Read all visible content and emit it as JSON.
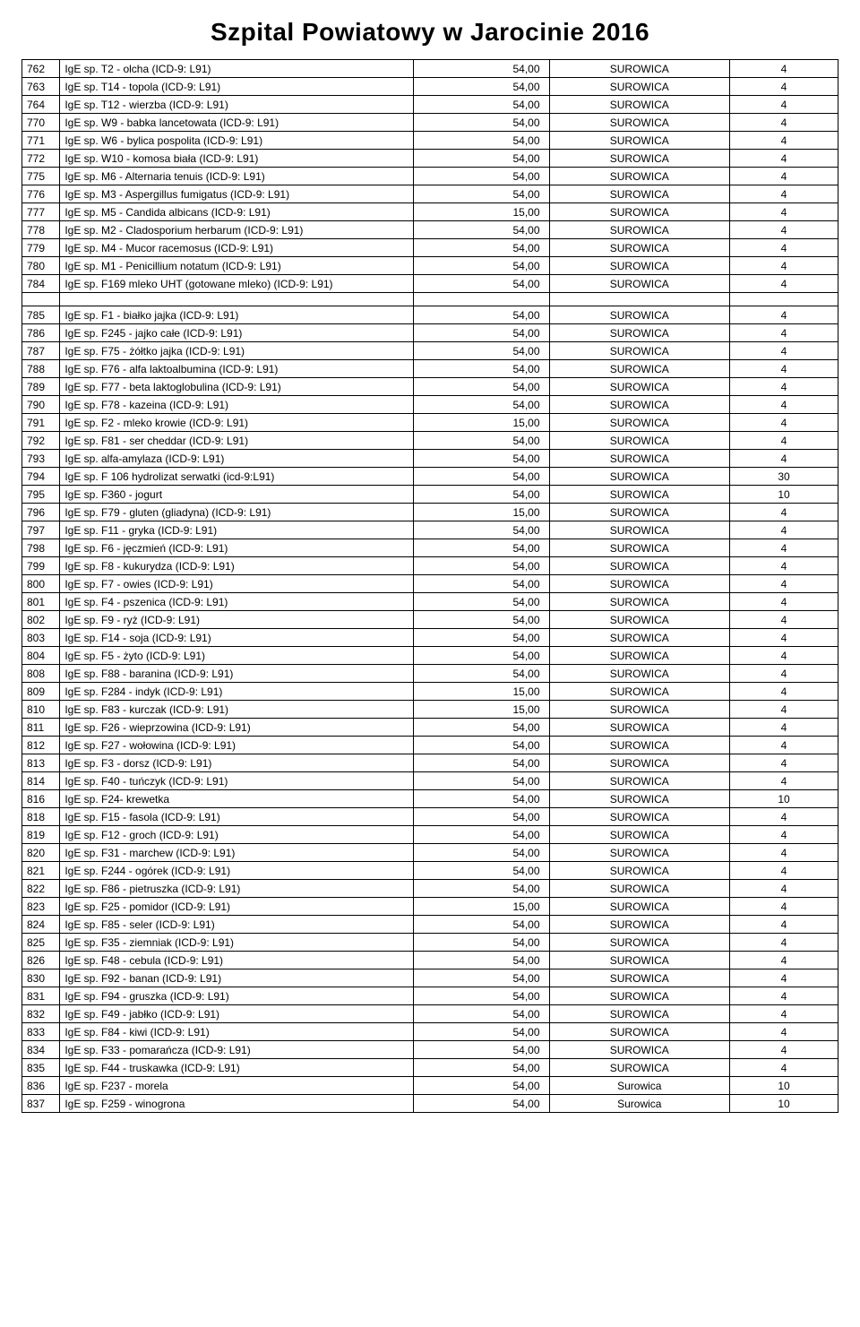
{
  "title": "Szpital Powiatowy w Jarocinie 2016",
  "columns": [
    "code",
    "name",
    "price",
    "material",
    "val"
  ],
  "block_break_after_index": 12,
  "rows": [
    [
      "762",
      "IgE sp. T2 - olcha (ICD-9: L91)",
      "54,00",
      "SUROWICA",
      "4"
    ],
    [
      "763",
      "IgE sp. T14 - topola (ICD-9: L91)",
      "54,00",
      "SUROWICA",
      "4"
    ],
    [
      "764",
      "IgE sp. T12 - wierzba (ICD-9: L91)",
      "54,00",
      "SUROWICA",
      "4"
    ],
    [
      "770",
      "IgE sp. W9 - babka lancetowata (ICD-9: L91)",
      "54,00",
      "SUROWICA",
      "4"
    ],
    [
      "771",
      "IgE sp. W6 - bylica pospolita (ICD-9: L91)",
      "54,00",
      "SUROWICA",
      "4"
    ],
    [
      "772",
      "IgE sp. W10 - komosa biała (ICD-9: L91)",
      "54,00",
      "SUROWICA",
      "4"
    ],
    [
      "775",
      "IgE sp. M6 - Alternaria tenuis (ICD-9: L91)",
      "54,00",
      "SUROWICA",
      "4"
    ],
    [
      "776",
      "IgE sp. M3 - Aspergillus fumigatus (ICD-9: L91)",
      "54,00",
      "SUROWICA",
      "4"
    ],
    [
      "777",
      "IgE sp. M5 - Candida albicans (ICD-9: L91)",
      "15,00",
      "SUROWICA",
      "4"
    ],
    [
      "778",
      "IgE sp. M2 - Cladosporium herbarum (ICD-9: L91)",
      "54,00",
      "SUROWICA",
      "4"
    ],
    [
      "779",
      "IgE sp. M4 - Mucor racemosus (ICD-9: L91)",
      "54,00",
      "SUROWICA",
      "4"
    ],
    [
      "780",
      "IgE sp. M1 - Penicillium notatum (ICD-9: L91)",
      "54,00",
      "SUROWICA",
      "4"
    ],
    [
      "784",
      "IgE sp. F169 mleko UHT (gotowane mleko) (ICD-9: L91)",
      "54,00",
      "SUROWICA",
      "4"
    ],
    [
      "785",
      "IgE sp. F1 - białko jajka (ICD-9: L91)",
      "54,00",
      "SUROWICA",
      "4"
    ],
    [
      "786",
      "IgE sp. F245 - jajko całe (ICD-9: L91)",
      "54,00",
      "SUROWICA",
      "4"
    ],
    [
      "787",
      "IgE sp. F75 - żółtko jajka (ICD-9: L91)",
      "54,00",
      "SUROWICA",
      "4"
    ],
    [
      "788",
      "IgE sp. F76 - alfa laktoalbumina (ICD-9: L91)",
      "54,00",
      "SUROWICA",
      "4"
    ],
    [
      "789",
      "IgE sp. F77 - beta laktoglobulina (ICD-9: L91)",
      "54,00",
      "SUROWICA",
      "4"
    ],
    [
      "790",
      "IgE sp. F78 - kazeina (ICD-9: L91)",
      "54,00",
      "SUROWICA",
      "4"
    ],
    [
      "791",
      "IgE sp. F2 - mleko krowie (ICD-9: L91)",
      "15,00",
      "SUROWICA",
      "4"
    ],
    [
      "792",
      "IgE sp. F81 - ser cheddar (ICD-9: L91)",
      "54,00",
      "SUROWICA",
      "4"
    ],
    [
      "793",
      "IgE sp. alfa-amylaza (ICD-9: L91)",
      "54,00",
      "SUROWICA",
      "4"
    ],
    [
      "794",
      "IgE sp. F 106 hydrolizat serwatki (icd-9:L91)",
      "54,00",
      "SUROWICA",
      "30"
    ],
    [
      "795",
      "IgE sp. F360 - jogurt",
      "54,00",
      "SUROWICA",
      "10"
    ],
    [
      "796",
      "IgE sp. F79 - gluten (gliadyna) (ICD-9: L91)",
      "15,00",
      "SUROWICA",
      "4"
    ],
    [
      "797",
      "IgE sp. F11 - gryka (ICD-9: L91)",
      "54,00",
      "SUROWICA",
      "4"
    ],
    [
      "798",
      "IgE sp. F6 - jęczmień (ICD-9: L91)",
      "54,00",
      "SUROWICA",
      "4"
    ],
    [
      "799",
      "IgE sp. F8 - kukurydza (ICD-9: L91)",
      "54,00",
      "SUROWICA",
      "4"
    ],
    [
      "800",
      "IgE sp. F7 - owies (ICD-9: L91)",
      "54,00",
      "SUROWICA",
      "4"
    ],
    [
      "801",
      "IgE sp. F4 - pszenica (ICD-9: L91)",
      "54,00",
      "SUROWICA",
      "4"
    ],
    [
      "802",
      "IgE sp. F9 - ryż (ICD-9: L91)",
      "54,00",
      "SUROWICA",
      "4"
    ],
    [
      "803",
      "IgE sp. F14 - soja (ICD-9: L91)",
      "54,00",
      "SUROWICA",
      "4"
    ],
    [
      "804",
      "IgE sp. F5 - żyto (ICD-9: L91)",
      "54,00",
      "SUROWICA",
      "4"
    ],
    [
      "808",
      "IgE sp. F88 - baranina (ICD-9: L91)",
      "54,00",
      "SUROWICA",
      "4"
    ],
    [
      "809",
      "IgE sp. F284 - indyk (ICD-9: L91)",
      "15,00",
      "SUROWICA",
      "4"
    ],
    [
      "810",
      "IgE sp. F83 - kurczak (ICD-9: L91)",
      "15,00",
      "SUROWICA",
      "4"
    ],
    [
      "811",
      "IgE sp. F26 - wieprzowina (ICD-9: L91)",
      "54,00",
      "SUROWICA",
      "4"
    ],
    [
      "812",
      "IgE sp. F27 - wołowina (ICD-9: L91)",
      "54,00",
      "SUROWICA",
      "4"
    ],
    [
      "813",
      "IgE sp. F3 - dorsz (ICD-9: L91)",
      "54,00",
      "SUROWICA",
      "4"
    ],
    [
      "814",
      "IgE sp. F40 - tuńczyk (ICD-9: L91)",
      "54,00",
      "SUROWICA",
      "4"
    ],
    [
      "816",
      "IgE sp. F24- krewetka",
      "54,00",
      "SUROWICA",
      "10"
    ],
    [
      "818",
      "IgE sp. F15 - fasola (ICD-9: L91)",
      "54,00",
      "SUROWICA",
      "4"
    ],
    [
      "819",
      "IgE sp. F12 - groch (ICD-9: L91)",
      "54,00",
      "SUROWICA",
      "4"
    ],
    [
      "820",
      "IgE sp. F31 - marchew (ICD-9: L91)",
      "54,00",
      "SUROWICA",
      "4"
    ],
    [
      "821",
      "IgE sp. F244 - ogórek (ICD-9: L91)",
      "54,00",
      "SUROWICA",
      "4"
    ],
    [
      "822",
      "IgE sp. F86 - pietruszka (ICD-9: L91)",
      "54,00",
      "SUROWICA",
      "4"
    ],
    [
      "823",
      "IgE sp. F25 - pomidor (ICD-9: L91)",
      "15,00",
      "SUROWICA",
      "4"
    ],
    [
      "824",
      "IgE sp. F85 - seler (ICD-9: L91)",
      "54,00",
      "SUROWICA",
      "4"
    ],
    [
      "825",
      "IgE sp. F35 - ziemniak (ICD-9: L91)",
      "54,00",
      "SUROWICA",
      "4"
    ],
    [
      "826",
      "IgE sp. F48 - cebula (ICD-9: L91)",
      "54,00",
      "SUROWICA",
      "4"
    ],
    [
      "830",
      "IgE sp. F92 - banan (ICD-9: L91)",
      "54,00",
      "SUROWICA",
      "4"
    ],
    [
      "831",
      "IgE sp. F94 - gruszka (ICD-9: L91)",
      "54,00",
      "SUROWICA",
      "4"
    ],
    [
      "832",
      "IgE sp. F49 - jabłko (ICD-9: L91)",
      "54,00",
      "SUROWICA",
      "4"
    ],
    [
      "833",
      "IgE sp. F84 - kiwi (ICD-9: L91)",
      "54,00",
      "SUROWICA",
      "4"
    ],
    [
      "834",
      "IgE sp. F33 - pomarańcza (ICD-9: L91)",
      "54,00",
      "SUROWICA",
      "4"
    ],
    [
      "835",
      "IgE sp. F44 - truskawka (ICD-9: L91)",
      "54,00",
      "SUROWICA",
      "4"
    ],
    [
      "836",
      "IgE sp. F237 - morela",
      "54,00",
      "Surowica",
      "10"
    ],
    [
      "837",
      "IgE sp. F259 - winogrona",
      "54,00",
      "Surowica",
      "10"
    ]
  ]
}
